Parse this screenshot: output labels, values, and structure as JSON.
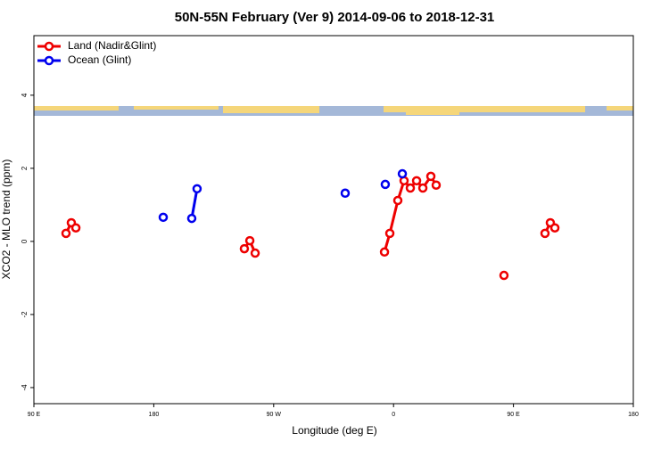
{
  "chart_data": {
    "type": "line",
    "title": "50N-55N February (Ver 9)   2014-09-06 to 2018-12-31",
    "x_label": "Longitude (deg E)",
    "y_label": "XCO2 - MLO trend (ppm)",
    "xlim": [
      90,
      540
    ],
    "ylim": [
      -4.44,
      5.63
    ],
    "xticks": [
      {
        "value": 90,
        "label": "90 E"
      },
      180,
      {
        "value": 270,
        "label": "90 W"
      },
      {
        "value": 360,
        "label": "0"
      },
      {
        "value": 450,
        "label": "90 E"
      },
      {
        "value": 540,
        "label": "180"
      }
    ],
    "yticks": [
      -4,
      -2,
      0,
      2,
      4
    ],
    "legend": "top-left",
    "series": [
      {
        "name": "Land (Nadir&Glint)",
        "color": "#ee0000",
        "x": [
          114.1,
          118.1,
          121.5,
          null,
          248,
          252.1,
          256.1,
          null,
          353.2,
          357.2,
          363.2,
          367.9,
          372.6,
          377.3,
          382,
          388,
          392,
          null,
          442.9,
          null,
          473.7,
          477.7,
          481.1
        ],
        "values": [
          0.22,
          0.51,
          0.37,
          null,
          -0.2,
          0.02,
          -0.32,
          null,
          -0.29,
          0.22,
          1.12,
          1.66,
          1.46,
          1.66,
          1.46,
          1.78,
          1.54,
          null,
          -0.93,
          null,
          0.22,
          0.51,
          0.37
        ]
      },
      {
        "name": "Ocean (Glint)",
        "color": "#0000ee",
        "x": [
          187.1,
          null,
          208.5,
          212.5,
          null,
          323.7,
          null,
          353.8,
          null,
          366.6
        ],
        "values": [
          0.66,
          null,
          0.63,
          1.44,
          null,
          1.32,
          null,
          1.56,
          null,
          1.85
        ]
      }
    ]
  }
}
